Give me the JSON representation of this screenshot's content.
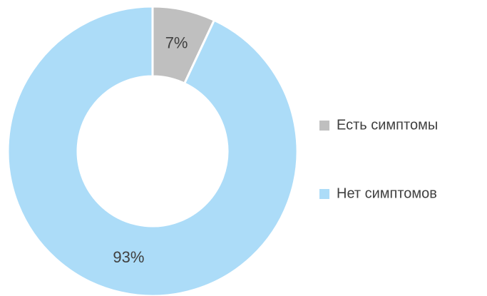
{
  "chart_data": {
    "type": "donut",
    "categories": [
      "Есть симптомы",
      "Нет симптомов"
    ],
    "values": [
      7,
      93
    ],
    "value_labels": [
      "7%",
      "93%"
    ],
    "colors": [
      "#bfbfbf",
      "#acdcf8"
    ],
    "legend": "right"
  }
}
